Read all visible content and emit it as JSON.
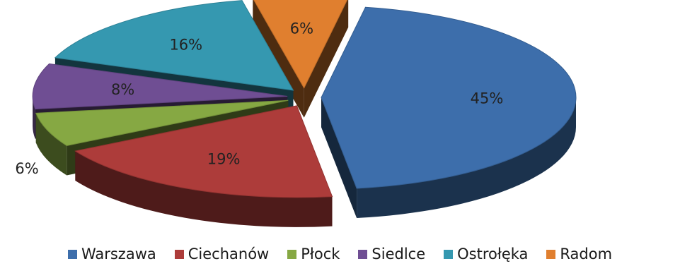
{
  "chart_data": {
    "type": "pie",
    "style": "3d-exploded",
    "legend_position": "bottom",
    "categories": [
      "Warszawa",
      "Ciechanów",
      "Płock",
      "Siedlce",
      "Ostrołęka",
      "Radom"
    ],
    "values": [
      45,
      19,
      6,
      8,
      16,
      6
    ],
    "data_labels": [
      "45%",
      "19%",
      "6%",
      "8%",
      "16%",
      "6%"
    ],
    "colors": [
      "#3d6eab",
      "#ad3c3a",
      "#86a843",
      "#6f4e93",
      "#3598b0",
      "#e07f2f"
    ]
  }
}
